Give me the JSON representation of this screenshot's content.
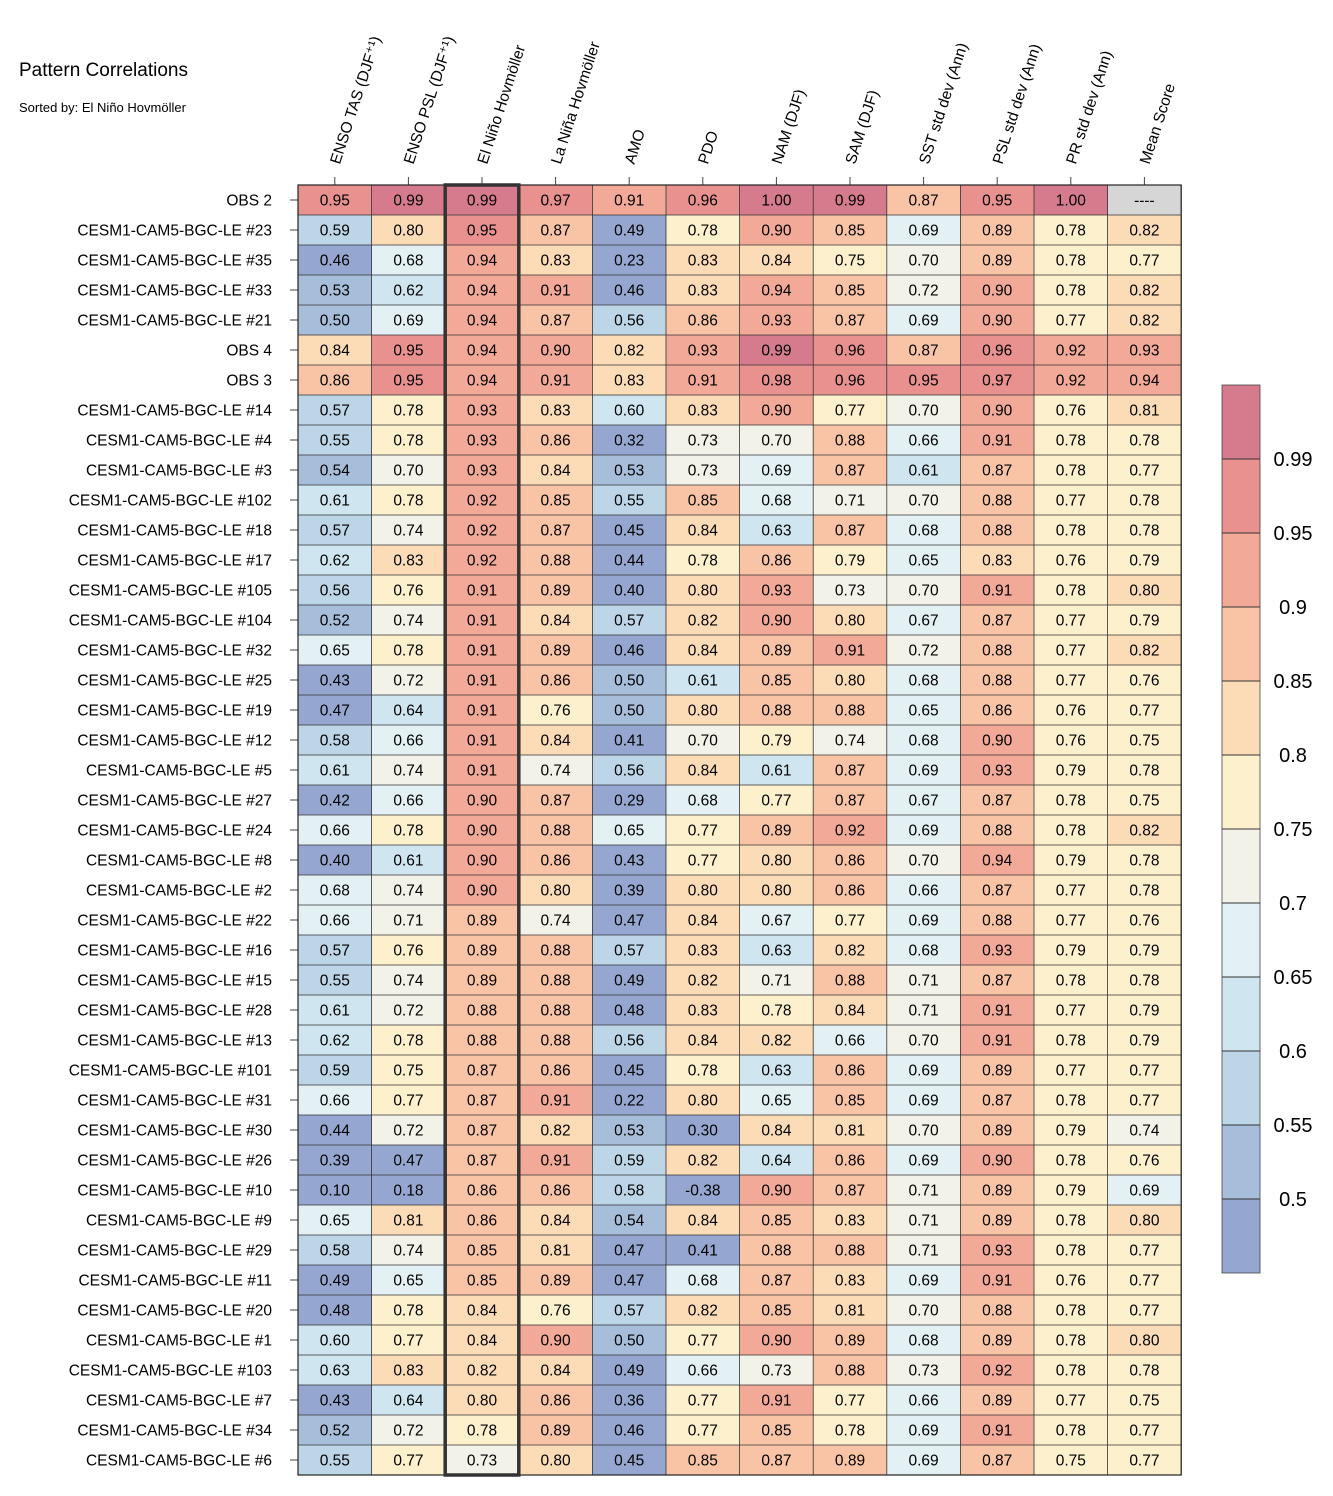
{
  "chart_data": {
    "type": "heatmap",
    "title": "Pattern Correlations",
    "subtitle": "Sorted by: El Niño Hovmöller",
    "columns": [
      "ENSO TAS (DJF⁺¹)",
      "ENSO PSL (DJF⁺¹)",
      "El Niño Hovmöller",
      "La Niña Hovmöller",
      "AMO",
      "PDO",
      "NAM (DJF)",
      "SAM (DJF)",
      "SST std dev (Ann)",
      "PSL std dev (Ann)",
      "PR std dev (Ann)",
      "Mean Score"
    ],
    "highlighted_column": "El Niño Hovmöller",
    "rows": [
      "OBS 2",
      "CESM1-CAM5-BGC-LE #23",
      "CESM1-CAM5-BGC-LE #35",
      "CESM1-CAM5-BGC-LE #33",
      "CESM1-CAM5-BGC-LE #21",
      "OBS 4",
      "OBS 3",
      "CESM1-CAM5-BGC-LE #14",
      "CESM1-CAM5-BGC-LE #4",
      "CESM1-CAM5-BGC-LE #3",
      "CESM1-CAM5-BGC-LE #102",
      "CESM1-CAM5-BGC-LE #18",
      "CESM1-CAM5-BGC-LE #17",
      "CESM1-CAM5-BGC-LE #105",
      "CESM1-CAM5-BGC-LE #104",
      "CESM1-CAM5-BGC-LE #32",
      "CESM1-CAM5-BGC-LE #25",
      "CESM1-CAM5-BGC-LE #19",
      "CESM1-CAM5-BGC-LE #12",
      "CESM1-CAM5-BGC-LE #5",
      "CESM1-CAM5-BGC-LE #27",
      "CESM1-CAM5-BGC-LE #24",
      "CESM1-CAM5-BGC-LE #8",
      "CESM1-CAM5-BGC-LE #2",
      "CESM1-CAM5-BGC-LE #22",
      "CESM1-CAM5-BGC-LE #16",
      "CESM1-CAM5-BGC-LE #15",
      "CESM1-CAM5-BGC-LE #28",
      "CESM1-CAM5-BGC-LE #13",
      "CESM1-CAM5-BGC-LE #101",
      "CESM1-CAM5-BGC-LE #31",
      "CESM1-CAM5-BGC-LE #30",
      "CESM1-CAM5-BGC-LE #26",
      "CESM1-CAM5-BGC-LE #10",
      "CESM1-CAM5-BGC-LE #9",
      "CESM1-CAM5-BGC-LE #29",
      "CESM1-CAM5-BGC-LE #11",
      "CESM1-CAM5-BGC-LE #20",
      "CESM1-CAM5-BGC-LE #1",
      "CESM1-CAM5-BGC-LE #103",
      "CESM1-CAM5-BGC-LE #7",
      "CESM1-CAM5-BGC-LE #34",
      "CESM1-CAM5-BGC-LE #6"
    ],
    "values": [
      [
        "0.95",
        "0.99",
        "0.99",
        "0.97",
        "0.91",
        "0.96",
        "1.00",
        "0.99",
        "0.87",
        "0.95",
        "1.00",
        "----"
      ],
      [
        "0.59",
        "0.80",
        "0.95",
        "0.87",
        "0.49",
        "0.78",
        "0.90",
        "0.85",
        "0.69",
        "0.89",
        "0.78",
        "0.82"
      ],
      [
        "0.46",
        "0.68",
        "0.94",
        "0.83",
        "0.23",
        "0.83",
        "0.84",
        "0.75",
        "0.70",
        "0.89",
        "0.78",
        "0.77"
      ],
      [
        "0.53",
        "0.62",
        "0.94",
        "0.91",
        "0.46",
        "0.83",
        "0.94",
        "0.85",
        "0.72",
        "0.90",
        "0.78",
        "0.82"
      ],
      [
        "0.50",
        "0.69",
        "0.94",
        "0.87",
        "0.56",
        "0.86",
        "0.93",
        "0.87",
        "0.69",
        "0.90",
        "0.77",
        "0.82"
      ],
      [
        "0.84",
        "0.95",
        "0.94",
        "0.90",
        "0.82",
        "0.93",
        "0.99",
        "0.96",
        "0.87",
        "0.96",
        "0.92",
        "0.93"
      ],
      [
        "0.86",
        "0.95",
        "0.94",
        "0.91",
        "0.83",
        "0.91",
        "0.98",
        "0.96",
        "0.95",
        "0.97",
        "0.92",
        "0.94"
      ],
      [
        "0.57",
        "0.78",
        "0.93",
        "0.83",
        "0.60",
        "0.83",
        "0.90",
        "0.77",
        "0.70",
        "0.90",
        "0.76",
        "0.81"
      ],
      [
        "0.55",
        "0.78",
        "0.93",
        "0.86",
        "0.32",
        "0.73",
        "0.70",
        "0.88",
        "0.66",
        "0.91",
        "0.78",
        "0.78"
      ],
      [
        "0.54",
        "0.70",
        "0.93",
        "0.84",
        "0.53",
        "0.73",
        "0.69",
        "0.87",
        "0.61",
        "0.87",
        "0.78",
        "0.77"
      ],
      [
        "0.61",
        "0.78",
        "0.92",
        "0.85",
        "0.55",
        "0.85",
        "0.68",
        "0.71",
        "0.70",
        "0.88",
        "0.77",
        "0.78"
      ],
      [
        "0.57",
        "0.74",
        "0.92",
        "0.87",
        "0.45",
        "0.84",
        "0.63",
        "0.87",
        "0.68",
        "0.88",
        "0.78",
        "0.78"
      ],
      [
        "0.62",
        "0.83",
        "0.92",
        "0.88",
        "0.44",
        "0.78",
        "0.86",
        "0.79",
        "0.65",
        "0.83",
        "0.76",
        "0.79"
      ],
      [
        "0.56",
        "0.76",
        "0.91",
        "0.89",
        "0.40",
        "0.80",
        "0.93",
        "0.73",
        "0.70",
        "0.91",
        "0.78",
        "0.80"
      ],
      [
        "0.52",
        "0.74",
        "0.91",
        "0.84",
        "0.57",
        "0.82",
        "0.90",
        "0.80",
        "0.67",
        "0.87",
        "0.77",
        "0.79"
      ],
      [
        "0.65",
        "0.78",
        "0.91",
        "0.89",
        "0.46",
        "0.84",
        "0.89",
        "0.91",
        "0.72",
        "0.88",
        "0.77",
        "0.82"
      ],
      [
        "0.43",
        "0.72",
        "0.91",
        "0.86",
        "0.50",
        "0.61",
        "0.85",
        "0.80",
        "0.68",
        "0.88",
        "0.77",
        "0.76"
      ],
      [
        "0.47",
        "0.64",
        "0.91",
        "0.76",
        "0.50",
        "0.80",
        "0.88",
        "0.88",
        "0.65",
        "0.86",
        "0.76",
        "0.77"
      ],
      [
        "0.58",
        "0.66",
        "0.91",
        "0.84",
        "0.41",
        "0.70",
        "0.79",
        "0.74",
        "0.68",
        "0.90",
        "0.76",
        "0.75"
      ],
      [
        "0.61",
        "0.74",
        "0.91",
        "0.74",
        "0.56",
        "0.84",
        "0.61",
        "0.87",
        "0.69",
        "0.93",
        "0.79",
        "0.78"
      ],
      [
        "0.42",
        "0.66",
        "0.90",
        "0.87",
        "0.29",
        "0.68",
        "0.77",
        "0.87",
        "0.67",
        "0.87",
        "0.78",
        "0.75"
      ],
      [
        "0.66",
        "0.78",
        "0.90",
        "0.88",
        "0.65",
        "0.77",
        "0.89",
        "0.92",
        "0.69",
        "0.88",
        "0.78",
        "0.82"
      ],
      [
        "0.40",
        "0.61",
        "0.90",
        "0.86",
        "0.43",
        "0.77",
        "0.80",
        "0.86",
        "0.70",
        "0.94",
        "0.79",
        "0.78"
      ],
      [
        "0.68",
        "0.74",
        "0.90",
        "0.80",
        "0.39",
        "0.80",
        "0.80",
        "0.86",
        "0.66",
        "0.87",
        "0.77",
        "0.78"
      ],
      [
        "0.66",
        "0.71",
        "0.89",
        "0.74",
        "0.47",
        "0.84",
        "0.67",
        "0.77",
        "0.69",
        "0.88",
        "0.77",
        "0.76"
      ],
      [
        "0.57",
        "0.76",
        "0.89",
        "0.88",
        "0.57",
        "0.83",
        "0.63",
        "0.82",
        "0.68",
        "0.93",
        "0.79",
        "0.79"
      ],
      [
        "0.55",
        "0.74",
        "0.89",
        "0.88",
        "0.49",
        "0.82",
        "0.71",
        "0.88",
        "0.71",
        "0.87",
        "0.78",
        "0.78"
      ],
      [
        "0.61",
        "0.72",
        "0.88",
        "0.88",
        "0.48",
        "0.83",
        "0.78",
        "0.84",
        "0.71",
        "0.91",
        "0.77",
        "0.79"
      ],
      [
        "0.62",
        "0.78",
        "0.88",
        "0.88",
        "0.56",
        "0.84",
        "0.82",
        "0.66",
        "0.70",
        "0.91",
        "0.78",
        "0.79"
      ],
      [
        "0.59",
        "0.75",
        "0.87",
        "0.86",
        "0.45",
        "0.78",
        "0.63",
        "0.86",
        "0.69",
        "0.89",
        "0.77",
        "0.77"
      ],
      [
        "0.66",
        "0.77",
        "0.87",
        "0.91",
        "0.22",
        "0.80",
        "0.65",
        "0.85",
        "0.69",
        "0.87",
        "0.78",
        "0.77"
      ],
      [
        "0.44",
        "0.72",
        "0.87",
        "0.82",
        "0.53",
        "0.30",
        "0.84",
        "0.81",
        "0.70",
        "0.89",
        "0.79",
        "0.74"
      ],
      [
        "0.39",
        "0.47",
        "0.87",
        "0.91",
        "0.59",
        "0.82",
        "0.64",
        "0.86",
        "0.69",
        "0.90",
        "0.78",
        "0.76"
      ],
      [
        "0.10",
        "0.18",
        "0.86",
        "0.86",
        "0.58",
        "-0.38",
        "0.90",
        "0.87",
        "0.71",
        "0.89",
        "0.79",
        "0.69"
      ],
      [
        "0.65",
        "0.81",
        "0.86",
        "0.84",
        "0.54",
        "0.84",
        "0.85",
        "0.83",
        "0.71",
        "0.89",
        "0.78",
        "0.80"
      ],
      [
        "0.58",
        "0.74",
        "0.85",
        "0.81",
        "0.47",
        "0.41",
        "0.88",
        "0.88",
        "0.71",
        "0.93",
        "0.78",
        "0.77"
      ],
      [
        "0.49",
        "0.65",
        "0.85",
        "0.89",
        "0.47",
        "0.68",
        "0.87",
        "0.83",
        "0.69",
        "0.91",
        "0.76",
        "0.77"
      ],
      [
        "0.48",
        "0.78",
        "0.84",
        "0.76",
        "0.57",
        "0.82",
        "0.85",
        "0.81",
        "0.70",
        "0.88",
        "0.78",
        "0.77"
      ],
      [
        "0.60",
        "0.77",
        "0.84",
        "0.90",
        "0.50",
        "0.77",
        "0.90",
        "0.89",
        "0.68",
        "0.89",
        "0.78",
        "0.80"
      ],
      [
        "0.63",
        "0.83",
        "0.82",
        "0.84",
        "0.49",
        "0.66",
        "0.73",
        "0.88",
        "0.73",
        "0.92",
        "0.78",
        "0.78"
      ],
      [
        "0.43",
        "0.64",
        "0.80",
        "0.86",
        "0.36",
        "0.77",
        "0.91",
        "0.77",
        "0.66",
        "0.89",
        "0.77",
        "0.75"
      ],
      [
        "0.52",
        "0.72",
        "0.78",
        "0.89",
        "0.46",
        "0.77",
        "0.85",
        "0.78",
        "0.69",
        "0.91",
        "0.78",
        "0.77"
      ],
      [
        "0.55",
        "0.77",
        "0.73",
        "0.80",
        "0.45",
        "0.85",
        "0.87",
        "0.89",
        "0.69",
        "0.87",
        "0.75",
        "0.77"
      ]
    ],
    "colorbar": {
      "ticks": [
        "0.99",
        "0.95",
        "0.9",
        "0.85",
        "0.8",
        "0.75",
        "0.7",
        "0.65",
        "0.6",
        "0.55",
        "0.5"
      ],
      "bins": [
        {
          "min": 0.99,
          "color": "#d57b8d"
        },
        {
          "min": 0.95,
          "color": "#e8918f"
        },
        {
          "min": 0.9,
          "color": "#f2a997"
        },
        {
          "min": 0.85,
          "color": "#f9c4a6"
        },
        {
          "min": 0.8,
          "color": "#fcdcb7"
        },
        {
          "min": 0.75,
          "color": "#fdf0cd"
        },
        {
          "min": 0.7,
          "color": "#f3f2e8"
        },
        {
          "min": 0.65,
          "color": "#e3f0f4"
        },
        {
          "min": 0.6,
          "color": "#cfe5ef"
        },
        {
          "min": 0.55,
          "color": "#bcd5e7"
        },
        {
          "min": 0.5,
          "color": "#a7bedb"
        },
        {
          "min": -99,
          "color": "#95a7d0"
        }
      ],
      "missing_color": "#d6d6d6"
    }
  }
}
